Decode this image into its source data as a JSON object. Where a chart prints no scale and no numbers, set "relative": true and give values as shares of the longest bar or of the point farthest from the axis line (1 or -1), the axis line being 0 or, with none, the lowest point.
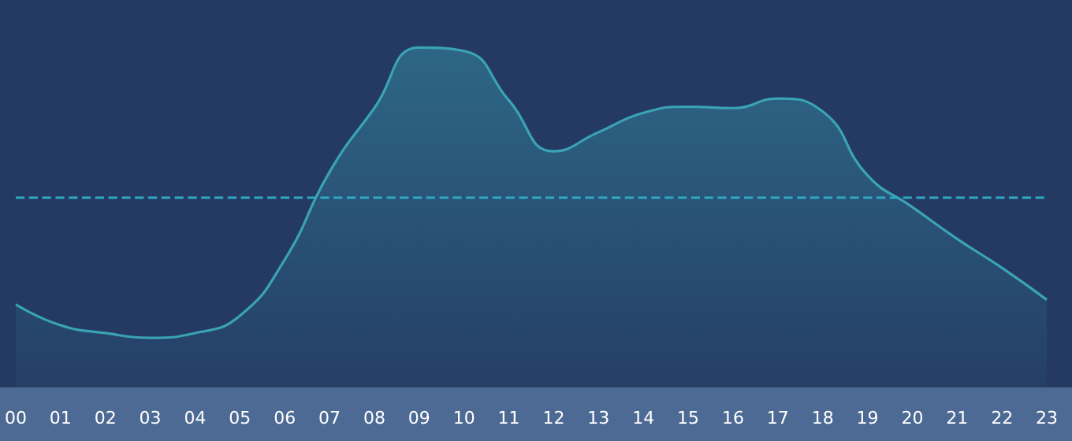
{
  "chart_data": {
    "type": "area",
    "relative": true,
    "categories": [
      "00",
      "01",
      "02",
      "03",
      "04",
      "05",
      "06",
      "07",
      "08",
      "09",
      "10",
      "11",
      "12",
      "13",
      "14",
      "15",
      "16",
      "17",
      "18",
      "19",
      "20",
      "21",
      "22",
      "23"
    ],
    "series": [
      {
        "color": "#3aa3b5",
        "values": [
          0.244,
          0.183,
          0.16,
          0.146,
          0.16,
          0.211,
          0.376,
          0.634,
          0.822,
          1,
          0.99,
          0.845,
          0.695,
          0.751,
          0.808,
          0.826,
          0.822,
          0.85,
          0.812,
          0.624,
          0.531,
          0.437,
          0.352,
          0.258
        ]
      }
    ],
    "ref_lines": [
      {
        "axis": "y",
        "value": 0.563,
        "color": "#2fa9c4",
        "line_style": "dashed"
      }
    ],
    "marker": "none",
    "line_style": "solid",
    "tick_labels": "x"
  }
}
